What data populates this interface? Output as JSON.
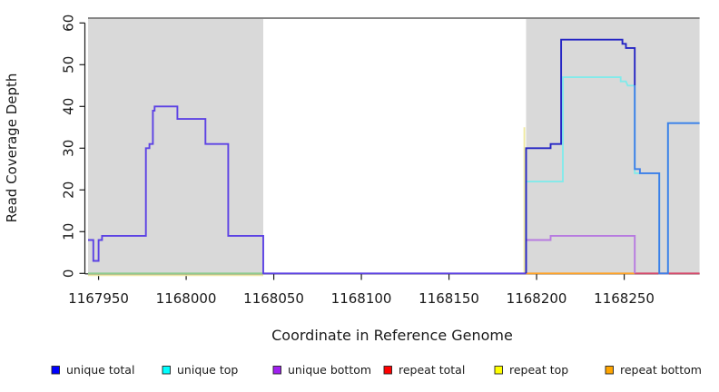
{
  "chart_data": {
    "type": "line",
    "title": "",
    "xlabel": "Coordinate in Reference Genome",
    "ylabel": "Read Coverage Depth",
    "xlim": [
      1167944,
      1168293
    ],
    "ylim": [
      0,
      61
    ],
    "grid": false,
    "legend_position": "bottom",
    "background_color": "#FFFFFF",
    "plot_top_border_color": "#858585",
    "x_ticks": [
      1167950,
      1168000,
      1168050,
      1168100,
      1168150,
      1168200,
      1168250
    ],
    "y_ticks": [
      0,
      10,
      20,
      30,
      40,
      50,
      60
    ],
    "shaded_regions": [
      {
        "x0": 1167944,
        "x1": 1168044,
        "color": "#D9D9D9"
      },
      {
        "x0": 1168194,
        "x1": 1168293,
        "color": "#D9D9D9"
      }
    ],
    "series": [
      {
        "name": "repeat top",
        "legend_color": "#FFFF00",
        "segments": [
          {
            "color": "#EDE7A4",
            "dy": 2,
            "points": [
              [
                1167944,
                0
              ],
              [
                1168044,
                0
              ]
            ]
          },
          {
            "color": "#EFE9A0",
            "points": [
              [
                1168193,
                0
              ],
              [
                1168193,
                35
              ]
            ]
          }
        ]
      },
      {
        "name": "unique top",
        "legend_color": "#00FFFF",
        "segments": [
          {
            "color": "#8FCB8F",
            "points": [
              [
                1167944,
                0
              ],
              [
                1168044,
                0
              ]
            ]
          },
          {
            "color": "#82EAEA",
            "points": [
              [
                1168194,
                0
              ],
              [
                1168194,
                22
              ],
              [
                1168215,
                22
              ],
              [
                1168215,
                47
              ],
              [
                1168248,
                47
              ],
              [
                1168248,
                46
              ],
              [
                1168251,
                46
              ],
              [
                1168252,
                45
              ],
              [
                1168256,
                45
              ],
              [
                1168256,
                24
              ],
              [
                1168270,
                24
              ],
              [
                1168270,
                0
              ],
              [
                1168275,
                0
              ],
              [
                1168275,
                36
              ],
              [
                1168293,
                36
              ]
            ]
          }
        ]
      },
      {
        "name": "repeat bottom",
        "legend_color": "#FFA500",
        "segments": [
          {
            "color": "#FFA226",
            "points": [
              [
                1168194,
                0
              ],
              [
                1168256,
                0
              ]
            ]
          }
        ]
      },
      {
        "name": "repeat total",
        "legend_color": "#FF0000",
        "segments": [
          {
            "color": "#D6496B",
            "points": [
              [
                1168256,
                0
              ],
              [
                1168293,
                0
              ]
            ]
          }
        ]
      },
      {
        "name": "unique bottom",
        "legend_color": "#A020F0",
        "segments": [
          {
            "color": "#B77BE0",
            "points": [
              [
                1168194,
                0
              ],
              [
                1168194,
                8
              ],
              [
                1168208,
                8
              ],
              [
                1168208,
                9
              ],
              [
                1168256,
                9
              ],
              [
                1168256,
                0
              ]
            ]
          }
        ]
      },
      {
        "name": "unique total",
        "legend_color": "#0000FF",
        "segments": [
          {
            "color": "#5C42E4",
            "points": [
              [
                1167944,
                8
              ],
              [
                1167947,
                8
              ],
              [
                1167947,
                3
              ],
              [
                1167950,
                3
              ],
              [
                1167950,
                8
              ],
              [
                1167952,
                8
              ],
              [
                1167952,
                9
              ],
              [
                1167977,
                9
              ],
              [
                1167977,
                30
              ],
              [
                1167979,
                30
              ],
              [
                1167979,
                31
              ],
              [
                1167981,
                31
              ],
              [
                1167981,
                39
              ],
              [
                1167982,
                39
              ],
              [
                1167982,
                40
              ],
              [
                1167995,
                40
              ],
              [
                1167995,
                37
              ],
              [
                1168011,
                37
              ],
              [
                1168011,
                31
              ],
              [
                1168024,
                31
              ],
              [
                1168024,
                9
              ],
              [
                1168044,
                9
              ],
              [
                1168044,
                0
              ],
              [
                1168194,
                0
              ]
            ]
          },
          {
            "color": "#2424C4",
            "points": [
              [
                1168194,
                0
              ],
              [
                1168194,
                30
              ],
              [
                1168208,
                30
              ],
              [
                1168208,
                31
              ],
              [
                1168214,
                31
              ],
              [
                1168214,
                56
              ],
              [
                1168249,
                56
              ],
              [
                1168249,
                55
              ],
              [
                1168251,
                55
              ],
              [
                1168251,
                54
              ],
              [
                1168256,
                54
              ],
              [
                1168256,
                45
              ]
            ]
          },
          {
            "color": "#3D7EE8",
            "points": [
              [
                1168256,
                45
              ],
              [
                1168256,
                25
              ],
              [
                1168259,
                25
              ],
              [
                1168259,
                24
              ],
              [
                1168270,
                24
              ],
              [
                1168270,
                0
              ],
              [
                1168275,
                0
              ],
              [
                1168275,
                36
              ],
              [
                1168293,
                36
              ]
            ]
          }
        ]
      }
    ],
    "legend": [
      {
        "label": "unique total",
        "color": "#0000FF"
      },
      {
        "label": "unique top",
        "color": "#00FFFF"
      },
      {
        "label": "unique bottom",
        "color": "#A020F0"
      },
      {
        "label": "repeat total",
        "color": "#FF0000"
      },
      {
        "label": "repeat top",
        "color": "#FFFF00"
      },
      {
        "label": "repeat bottom",
        "color": "#FFA500"
      }
    ]
  }
}
